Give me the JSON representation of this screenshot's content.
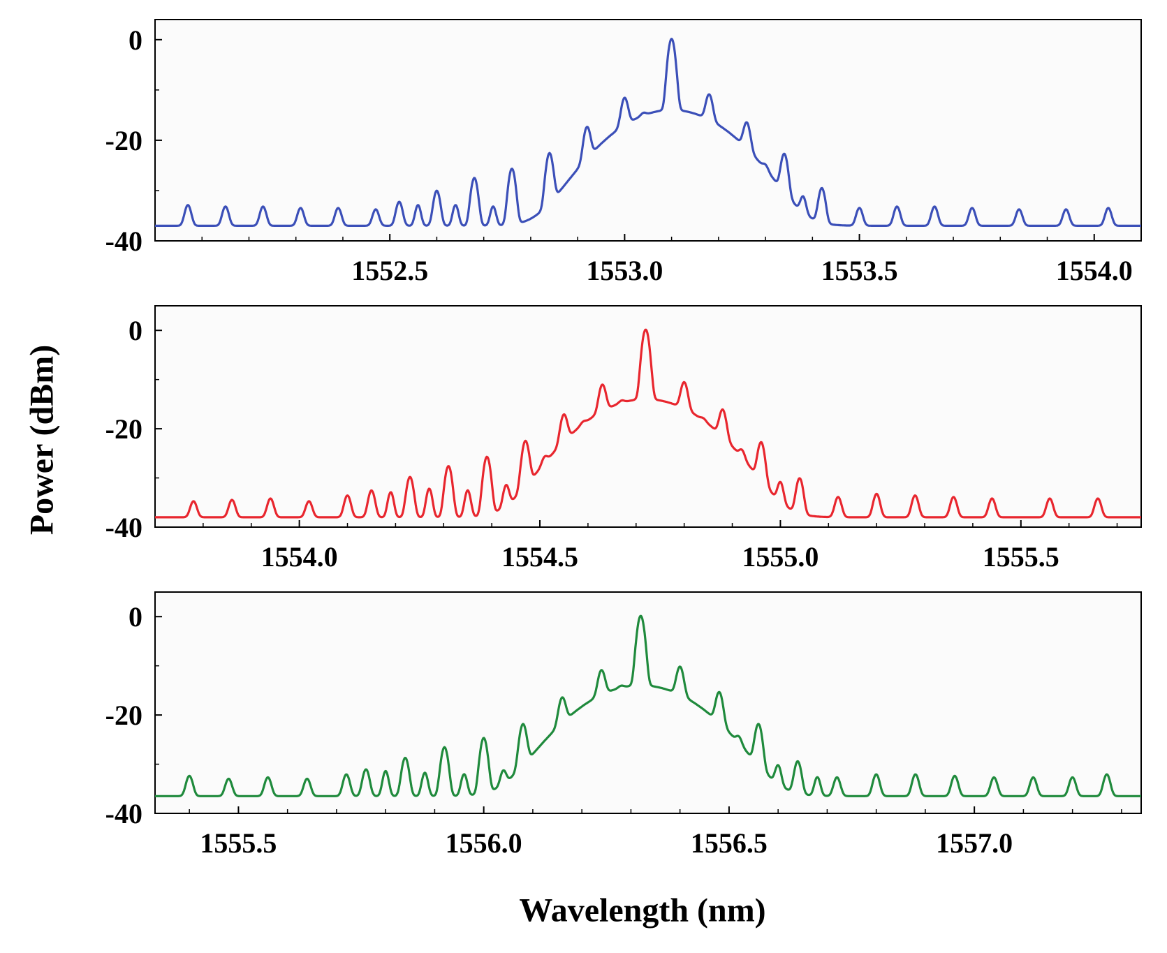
{
  "figure": {
    "xlabel": "Wavelength (nm)",
    "ylabel": "Power (dBm)"
  },
  "chart_data": [
    {
      "type": "line",
      "title": "",
      "xlabel": "Wavelength (nm)",
      "ylabel": "Power (dBm)",
      "color": "#3b4fb8",
      "xlim": [
        1552.0,
        1554.1
      ],
      "ylim": [
        -40,
        4
      ],
      "xticks": [
        1552.5,
        1553.0,
        1553.5,
        1554.0
      ],
      "xtick_labels": [
        "1552.5",
        "1553.0",
        "1553.5",
        "1554.0"
      ],
      "yticks": [
        0,
        -20,
        -40
      ],
      "ytick_labels": [
        "0",
        "-20",
        "-40"
      ],
      "center": 1553.1,
      "spacing": 0.08,
      "pedestal": {
        "width": 0.12,
        "height": 14
      },
      "floor": -37,
      "series": [
        {
          "peaks": [
            {
              "x": 1552.07,
              "y": -35
            },
            {
              "x": 1552.15,
              "y": -35.5
            },
            {
              "x": 1552.23,
              "y": -35.5
            },
            {
              "x": 1552.31,
              "y": -36
            },
            {
              "x": 1552.39,
              "y": -36
            },
            {
              "x": 1552.47,
              "y": -36.5
            },
            {
              "x": 1552.52,
              "y": -34
            },
            {
              "x": 1552.6,
              "y": -31
            },
            {
              "x": 1552.68,
              "y": -28
            },
            {
              "x": 1552.76,
              "y": -26
            },
            {
              "x": 1552.84,
              "y": -23
            },
            {
              "x": 1552.92,
              "y": -18.5
            },
            {
              "x": 1553.0,
              "y": -13
            },
            {
              "x": 1553.1,
              "y": 0
            },
            {
              "x": 1553.18,
              "y": -12.5
            },
            {
              "x": 1553.26,
              "y": -18
            },
            {
              "x": 1553.34,
              "y": -23.5
            },
            {
              "x": 1553.42,
              "y": -30.5
            },
            {
              "x": 1553.5,
              "y": -36
            },
            {
              "x": 1553.58,
              "y": -35.5
            },
            {
              "x": 1553.66,
              "y": -35.5
            },
            {
              "x": 1553.74,
              "y": -36
            },
            {
              "x": 1553.84,
              "y": -36.5
            },
            {
              "x": 1553.94,
              "y": -36.5
            },
            {
              "x": 1554.03,
              "y": -36
            }
          ],
          "secondary": [
            {
              "x": 1552.56,
              "y": -35
            },
            {
              "x": 1552.64,
              "y": -35
            },
            {
              "x": 1552.72,
              "y": -35.5
            },
            {
              "x": 1553.04,
              "y": -24
            },
            {
              "x": 1553.3,
              "y": -32
            },
            {
              "x": 1553.38,
              "y": -34
            }
          ]
        }
      ]
    },
    {
      "type": "line",
      "title": "",
      "xlabel": "Wavelength (nm)",
      "ylabel": "Power (dBm)",
      "color": "#e8262e",
      "xlim": [
        1553.7,
        1555.75
      ],
      "ylim": [
        -40,
        5
      ],
      "xticks": [
        1554.0,
        1554.5,
        1555.0,
        1555.5
      ],
      "xtick_labels": [
        "1554.0",
        "1554.5",
        "1555.0",
        "1555.5"
      ],
      "yticks": [
        0,
        -20,
        -40
      ],
      "ytick_labels": [
        "0",
        "-20",
        "-40"
      ],
      "center": 1554.72,
      "spacing": 0.08,
      "pedestal": {
        "width": 0.12,
        "height": 14
      },
      "floor": -38,
      "series": [
        {
          "peaks": [
            {
              "x": 1553.78,
              "y": -37.5
            },
            {
              "x": 1553.86,
              "y": -37
            },
            {
              "x": 1553.94,
              "y": -36.5
            },
            {
              "x": 1554.02,
              "y": -37.5
            },
            {
              "x": 1554.1,
              "y": -35.5
            },
            {
              "x": 1554.15,
              "y": -34
            },
            {
              "x": 1554.23,
              "y": -30.5
            },
            {
              "x": 1554.31,
              "y": -28
            },
            {
              "x": 1554.39,
              "y": -26
            },
            {
              "x": 1554.47,
              "y": -23
            },
            {
              "x": 1554.55,
              "y": -18.5
            },
            {
              "x": 1554.63,
              "y": -12.5
            },
            {
              "x": 1554.72,
              "y": 0
            },
            {
              "x": 1554.8,
              "y": -12
            },
            {
              "x": 1554.88,
              "y": -17.5
            },
            {
              "x": 1554.96,
              "y": -23.5
            },
            {
              "x": 1555.04,
              "y": -31
            },
            {
              "x": 1555.12,
              "y": -36
            },
            {
              "x": 1555.2,
              "y": -35
            },
            {
              "x": 1555.28,
              "y": -35.5
            },
            {
              "x": 1555.36,
              "y": -36
            },
            {
              "x": 1555.44,
              "y": -36.5
            },
            {
              "x": 1555.56,
              "y": -36.5
            },
            {
              "x": 1555.66,
              "y": -36.5
            }
          ],
          "secondary": [
            {
              "x": 1554.19,
              "y": -34.5
            },
            {
              "x": 1554.27,
              "y": -33.5
            },
            {
              "x": 1554.35,
              "y": -34
            },
            {
              "x": 1554.43,
              "y": -33.5
            },
            {
              "x": 1554.51,
              "y": -31.5
            },
            {
              "x": 1554.59,
              "y": -28
            },
            {
              "x": 1554.67,
              "y": -24
            },
            {
              "x": 1554.84,
              "y": -28
            },
            {
              "x": 1554.92,
              "y": -29.5
            },
            {
              "x": 1555.0,
              "y": -33
            }
          ]
        }
      ]
    },
    {
      "type": "line",
      "title": "",
      "xlabel": "Wavelength (nm)",
      "ylabel": "Power (dBm)",
      "color": "#1f8a3c",
      "xlim": [
        1555.33,
        1557.34
      ],
      "ylim": [
        -40,
        5
      ],
      "xticks": [
        1555.5,
        1556.0,
        1556.5,
        1557.0
      ],
      "xtick_labels": [
        "1555.5",
        "1556.0",
        "1556.5",
        "1557.0"
      ],
      "yticks": [
        0,
        -20,
        -40
      ],
      "ytick_labels": [
        "0",
        "-20",
        "-40"
      ],
      "center": 1556.32,
      "spacing": 0.08,
      "pedestal": {
        "width": 0.12,
        "height": 14
      },
      "floor": -36.5,
      "series": [
        {
          "peaks": [
            {
              "x": 1555.4,
              "y": -34.5
            },
            {
              "x": 1555.48,
              "y": -35.5
            },
            {
              "x": 1555.56,
              "y": -35
            },
            {
              "x": 1555.64,
              "y": -35.5
            },
            {
              "x": 1555.72,
              "y": -34
            },
            {
              "x": 1555.76,
              "y": -32.5
            },
            {
              "x": 1555.84,
              "y": -29.5
            },
            {
              "x": 1555.92,
              "y": -27
            },
            {
              "x": 1556.0,
              "y": -25
            },
            {
              "x": 1556.08,
              "y": -22.5
            },
            {
              "x": 1556.16,
              "y": -18
            },
            {
              "x": 1556.24,
              "y": -12.5
            },
            {
              "x": 1556.32,
              "y": 0
            },
            {
              "x": 1556.4,
              "y": -11.5
            },
            {
              "x": 1556.48,
              "y": -16.5
            },
            {
              "x": 1556.56,
              "y": -22.5
            },
            {
              "x": 1556.64,
              "y": -30.5
            },
            {
              "x": 1556.72,
              "y": -35
            },
            {
              "x": 1556.8,
              "y": -34
            },
            {
              "x": 1556.88,
              "y": -34
            },
            {
              "x": 1556.96,
              "y": -34.5
            },
            {
              "x": 1557.04,
              "y": -35
            },
            {
              "x": 1557.12,
              "y": -35
            },
            {
              "x": 1557.2,
              "y": -35
            },
            {
              "x": 1557.27,
              "y": -34
            }
          ],
          "secondary": [
            {
              "x": 1555.8,
              "y": -33
            },
            {
              "x": 1555.88,
              "y": -33.5
            },
            {
              "x": 1555.96,
              "y": -34
            },
            {
              "x": 1556.04,
              "y": -34.5
            },
            {
              "x": 1556.28,
              "y": -24.5
            },
            {
              "x": 1556.52,
              "y": -30
            },
            {
              "x": 1556.6,
              "y": -32.5
            },
            {
              "x": 1556.68,
              "y": -35
            }
          ]
        }
      ]
    }
  ]
}
